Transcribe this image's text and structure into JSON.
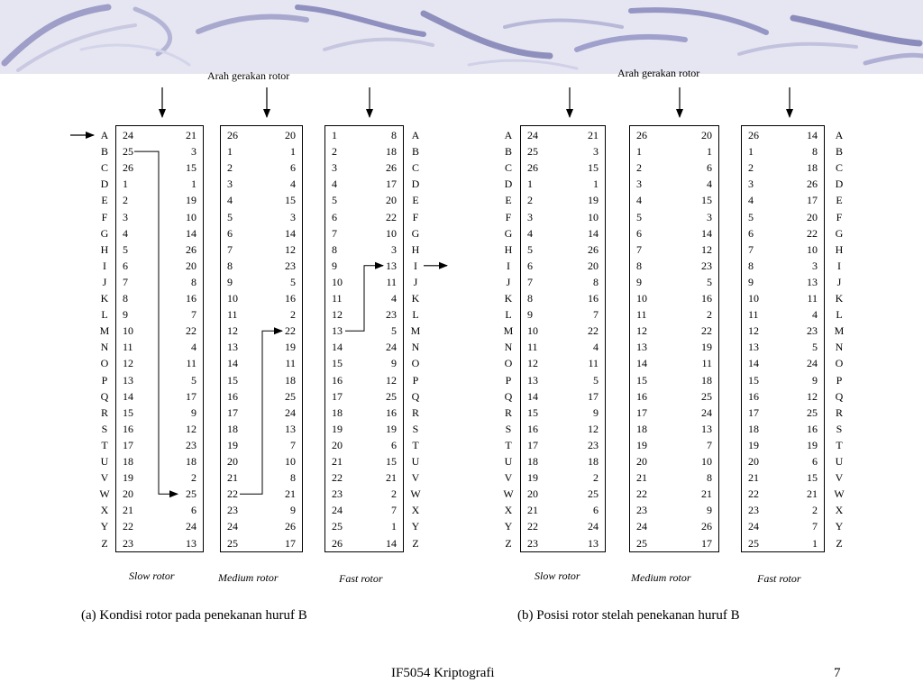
{
  "alphabet": [
    "A",
    "B",
    "C",
    "D",
    "E",
    "F",
    "G",
    "H",
    "I",
    "J",
    "K",
    "L",
    "M",
    "N",
    "O",
    "P",
    "Q",
    "R",
    "S",
    "T",
    "U",
    "V",
    "W",
    "X",
    "Y",
    "Z"
  ],
  "panels": [
    {
      "id": "a",
      "direction_label": "Arah gerakan rotor",
      "caption": "(a)  Kondisi rotor pada penekanan huruf B",
      "rotors": [
        {
          "name": "Slow rotor",
          "left": [
            24,
            25,
            26,
            1,
            2,
            3,
            4,
            5,
            6,
            7,
            8,
            9,
            10,
            11,
            12,
            13,
            14,
            15,
            16,
            17,
            18,
            19,
            20,
            21,
            22,
            23
          ],
          "right": [
            21,
            3,
            15,
            1,
            19,
            10,
            14,
            26,
            20,
            8,
            16,
            7,
            22,
            4,
            11,
            5,
            17,
            9,
            12,
            23,
            18,
            2,
            25,
            6,
            24,
            13
          ]
        },
        {
          "name": "Medium rotor",
          "left": [
            26,
            1,
            2,
            3,
            4,
            5,
            6,
            7,
            8,
            9,
            10,
            11,
            12,
            13,
            14,
            15,
            16,
            17,
            18,
            19,
            20,
            21,
            22,
            23,
            24,
            25
          ],
          "right": [
            20,
            1,
            6,
            4,
            15,
            3,
            14,
            12,
            23,
            5,
            16,
            2,
            22,
            19,
            11,
            18,
            25,
            24,
            13,
            7,
            10,
            8,
            21,
            9,
            26,
            17
          ]
        },
        {
          "name": "Fast rotor",
          "left": [
            1,
            2,
            3,
            4,
            5,
            6,
            7,
            8,
            9,
            10,
            11,
            12,
            13,
            14,
            15,
            16,
            17,
            18,
            19,
            20,
            21,
            22,
            23,
            24,
            25,
            26
          ],
          "right": [
            8,
            18,
            26,
            17,
            20,
            22,
            10,
            3,
            13,
            11,
            4,
            23,
            5,
            24,
            9,
            12,
            25,
            16,
            19,
            6,
            15,
            21,
            2,
            7,
            1,
            14
          ]
        }
      ]
    },
    {
      "id": "b",
      "direction_label": "Arah gerakan rotor",
      "caption": "(b) Posisi rotor stelah penekanan huruf B",
      "rotors": [
        {
          "name": "Slow rotor",
          "left": [
            24,
            25,
            26,
            1,
            2,
            3,
            4,
            5,
            6,
            7,
            8,
            9,
            10,
            11,
            12,
            13,
            14,
            15,
            16,
            17,
            18,
            19,
            20,
            21,
            22,
            23
          ],
          "right": [
            21,
            3,
            15,
            1,
            19,
            10,
            14,
            26,
            20,
            8,
            16,
            7,
            22,
            4,
            11,
            5,
            17,
            9,
            12,
            23,
            18,
            2,
            25,
            6,
            24,
            13
          ]
        },
        {
          "name": "Medium rotor",
          "left": [
            26,
            1,
            2,
            3,
            4,
            5,
            6,
            7,
            8,
            9,
            10,
            11,
            12,
            13,
            14,
            15,
            16,
            17,
            18,
            19,
            20,
            21,
            22,
            23,
            24,
            25
          ],
          "right": [
            20,
            1,
            6,
            4,
            15,
            3,
            14,
            12,
            23,
            5,
            16,
            2,
            22,
            19,
            11,
            18,
            25,
            24,
            13,
            7,
            10,
            8,
            21,
            9,
            26,
            17
          ]
        },
        {
          "name": "Fast rotor",
          "left": [
            26,
            1,
            2,
            3,
            4,
            5,
            6,
            7,
            8,
            9,
            10,
            11,
            12,
            13,
            14,
            15,
            16,
            17,
            18,
            19,
            20,
            21,
            22,
            23,
            24,
            25
          ],
          "right": [
            14,
            8,
            18,
            26,
            17,
            20,
            22,
            10,
            3,
            13,
            11,
            4,
            23,
            5,
            24,
            9,
            12,
            25,
            16,
            19,
            6,
            15,
            21,
            2,
            7,
            1
          ]
        }
      ]
    }
  ],
  "footer": {
    "title": "IF5054 Kriptografi",
    "page": "7"
  }
}
